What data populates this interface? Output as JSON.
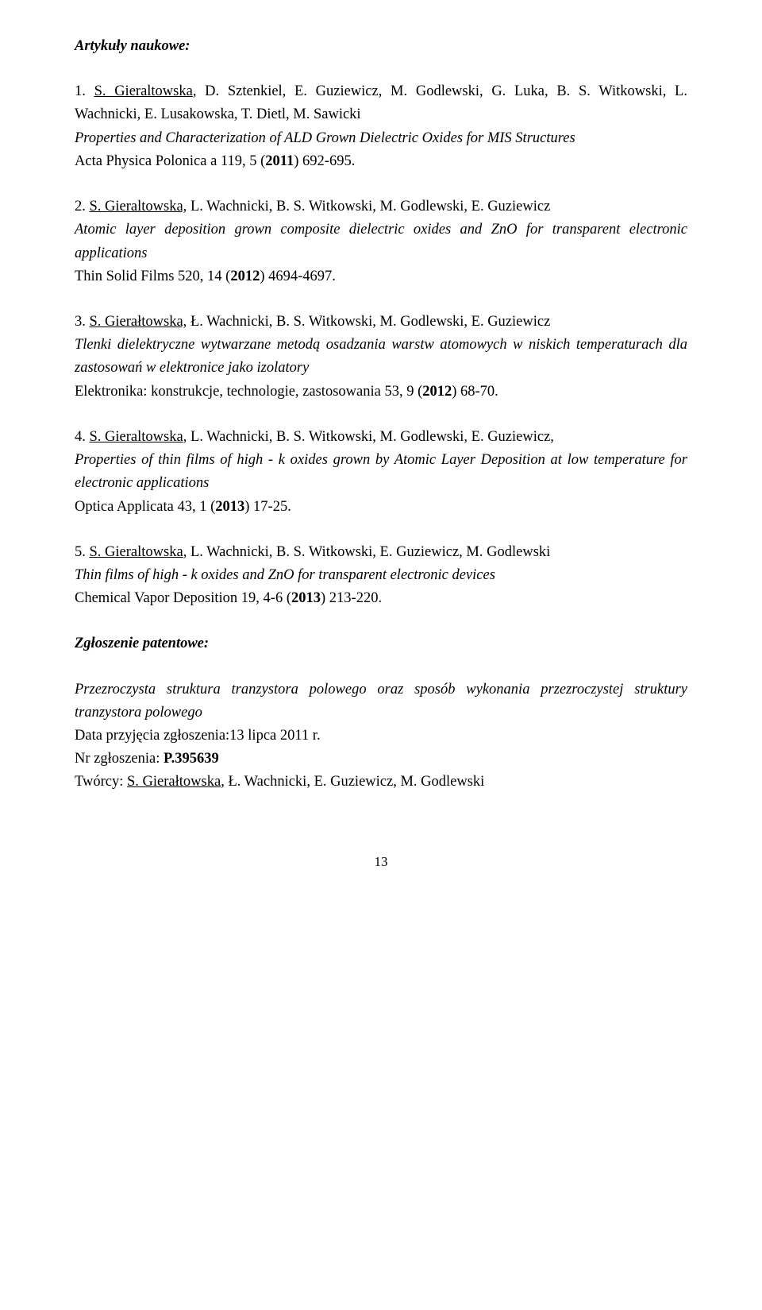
{
  "section_title": "Artykuły naukowe:",
  "entries": [
    {
      "num": "1. ",
      "author_u": "S. Gieraltowska",
      "authors_rest": ", D. Sztenkiel, E. Guziewicz, M. Godlewski, G. Luka, B. S. Witkowski, L. Wachnicki, E. Lusakowska, T. Dietl, M. Sawicki",
      "title_it": "Properties and Characterization of ALD Grown Dielectric Oxides for MIS Structures",
      "pub_pre": "Acta Physica Polonica a 119, 5 (",
      "pub_year": "2011",
      "pub_post": ") 692-695."
    },
    {
      "num": "2. ",
      "author_u": "S. Gieraltowska,",
      "authors_rest": " L. Wachnicki, B. S. Witkowski, M. Godlewski, E. Guziewicz",
      "title_it": "Atomic layer deposition grown composite dielectric oxides and ZnO for transparent electronic applications",
      "pub_pre": "Thin Solid Films 520, 14 (",
      "pub_year": "2012",
      "pub_post": ") 4694-4697."
    },
    {
      "num": "3. ",
      "author_u": "S. Gierałtowska,",
      "authors_rest": " Ł. Wachnicki, B. S. Witkowski, M. Godlewski, E. Guziewicz",
      "title_it": "Tlenki dielektryczne wytwarzane metodą osadzania warstw atomowych w niskich temperaturach dla zastosowań w elektronice jako izolatory",
      "pub_pre": "Elektronika: konstrukcje, technologie, zastosowania 53, 9 (",
      "pub_year": "2012",
      "pub_post": ") 68-70."
    },
    {
      "num": "4. ",
      "author_u": "S. Gieraltowska",
      "authors_rest": ", L. Wachnicki, B. S. Witkowski, M. Godlewski, E. Guziewicz,",
      "title_it": "Properties of thin films of high - k oxides grown by Atomic Layer Deposition at low temperature for electronic applications",
      "pub_pre": "Optica Applicata 43, 1 (",
      "pub_year": "2013",
      "pub_post": ") 17-25."
    },
    {
      "num": "5. ",
      "author_u": "S. Gieraltowska",
      "authors_rest": ", L. Wachnicki, B. S. Witkowski, E. Guziewicz, M. Godlewski",
      "title_it": "Thin films of high - k oxides and ZnO for transparent electronic devices",
      "pub_pre": "Chemical Vapor Deposition 19, 4-6 (",
      "pub_year": "2013",
      "pub_post": ") 213-220."
    }
  ],
  "patent_title": "Zgłoszenie patentowe:",
  "patent": {
    "desc_it": "Przezroczysta struktura tranzystora polowego oraz sposób wykonania przezroczystej struktury tranzystora polowego",
    "date": "Data przyjęcia zgłoszenia:13 lipca 2011 r.",
    "nr_pre": "Nr zgłoszenia: ",
    "nr_bold": "P.395639",
    "creators_pre": "Twórcy: ",
    "creators_u": "S. Gierałtowska",
    "creators_rest": ", Ł. Wachnicki, E. Guziewicz, M. Godlewski"
  },
  "page_number": "13"
}
